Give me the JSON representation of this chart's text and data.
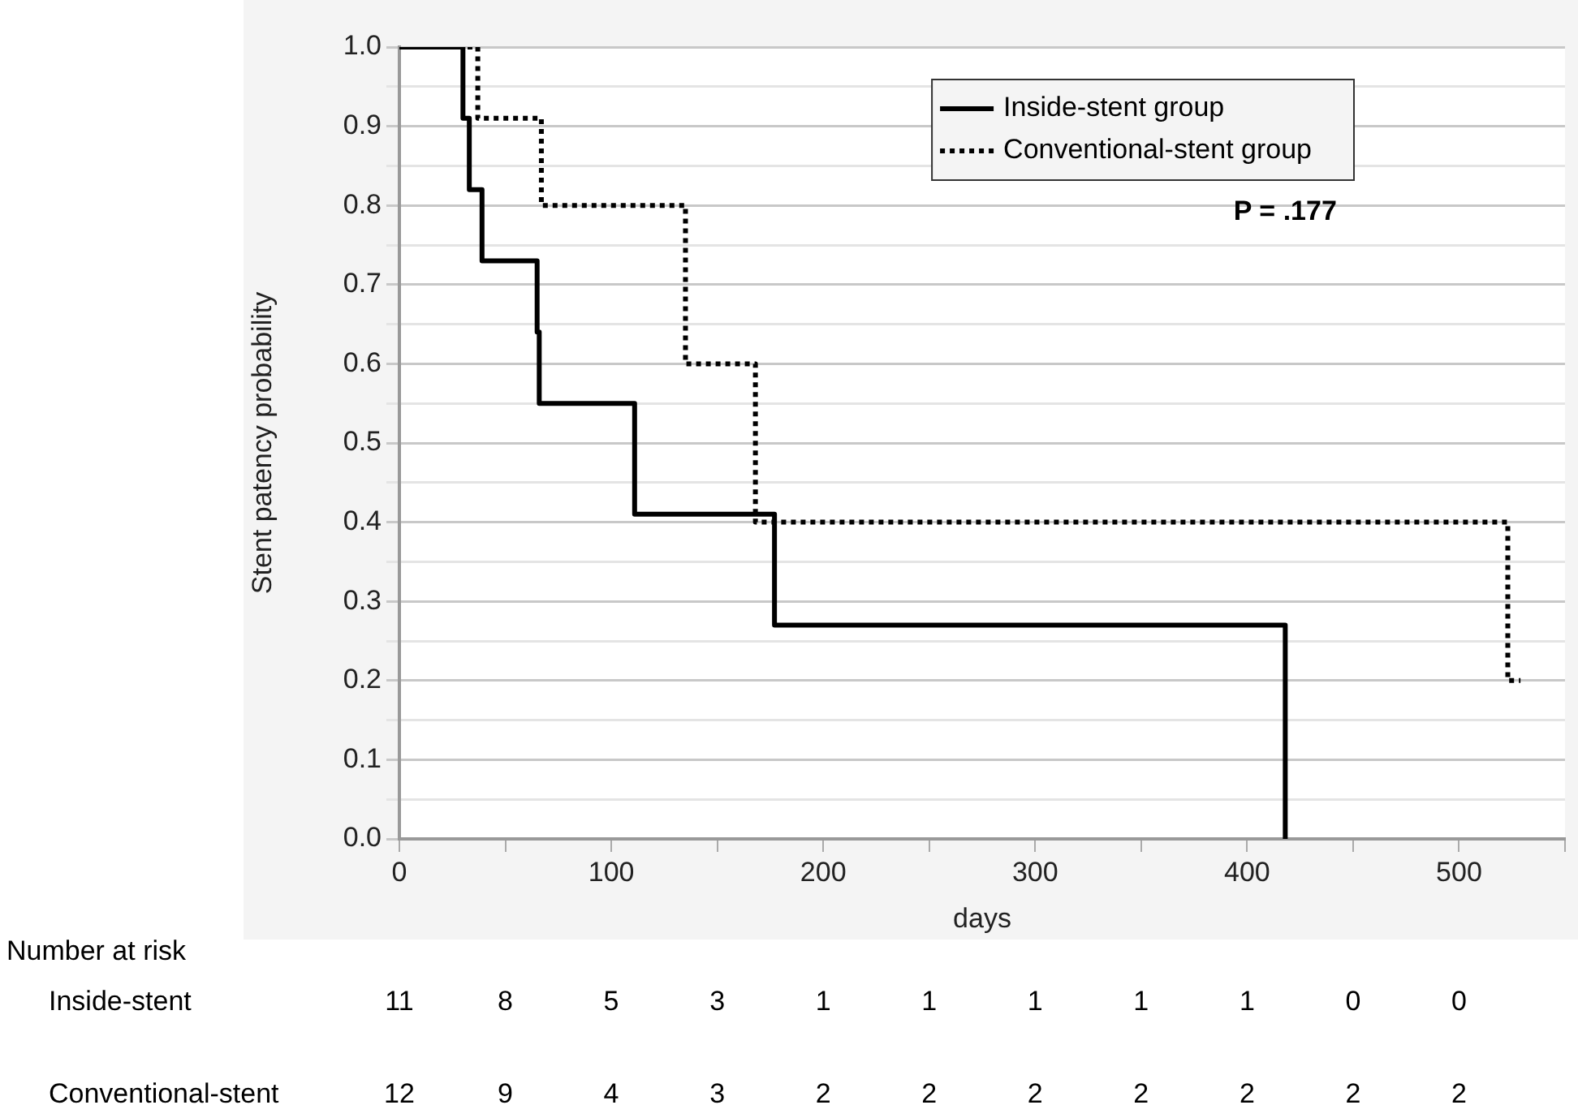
{
  "chart_data": {
    "type": "step",
    "xlabel": "days",
    "ylabel": "Stent patency probability",
    "xlim": [
      0,
      550
    ],
    "ylim": [
      0,
      1
    ],
    "xticks": [
      0,
      {
        "value": 50,
        "label": null
      },
      100,
      {
        "value": 150,
        "label": null
      },
      200,
      {
        "value": 250,
        "label": null
      },
      300,
      {
        "value": 350,
        "label": null
      },
      400,
      {
        "value": 450,
        "label": null
      },
      500,
      {
        "value": 550,
        "label": null
      }
    ],
    "yticks": [
      {
        "value": 0,
        "label": "0.0"
      },
      {
        "value": 0.05,
        "label": null
      },
      0.1,
      {
        "value": 0.15,
        "label": null
      },
      0.2,
      {
        "value": 0.25,
        "label": null
      },
      0.3,
      {
        "value": 0.35,
        "label": null
      },
      0.4,
      {
        "value": 0.45,
        "label": null
      },
      0.5,
      {
        "value": 0.55,
        "label": null
      },
      0.6,
      {
        "value": 0.65,
        "label": null
      },
      0.7,
      {
        "value": 0.75,
        "label": null
      },
      0.8,
      {
        "value": 0.85,
        "label": null
      },
      0.9,
      {
        "value": 0.95,
        "label": null
      },
      {
        "value": 1,
        "label": "1.0"
      }
    ],
    "grid": "y",
    "legend": "top right",
    "series": [
      {
        "name": "Inside-stent group",
        "color": "#000000",
        "line_style": "solid",
        "x": [
          0,
          30,
          33,
          39,
          65,
          66,
          111,
          177,
          418
        ],
        "values": [
          1,
          0.91,
          0.82,
          0.73,
          0.64,
          0.55,
          0.41,
          0.27,
          0
        ]
      },
      {
        "name": "Conventional-stent group",
        "color": "#000000",
        "line_style": "dotted",
        "x": [
          0,
          37,
          67,
          135,
          168,
          523,
          529
        ],
        "values": [
          1,
          0.91,
          0.8,
          0.6,
          0.4,
          0.2,
          0.2
        ]
      }
    ],
    "annotations": [
      "P = .177",
      "Number at risk",
      "Inside-stent",
      "11",
      "8",
      "5",
      "3",
      "1",
      "1",
      "1",
      "1",
      "1",
      "0",
      "0",
      "Conventional-stent",
      "12",
      "9",
      "4",
      "3",
      "2",
      "2",
      "2",
      "2",
      "2",
      "2",
      "2"
    ]
  }
}
